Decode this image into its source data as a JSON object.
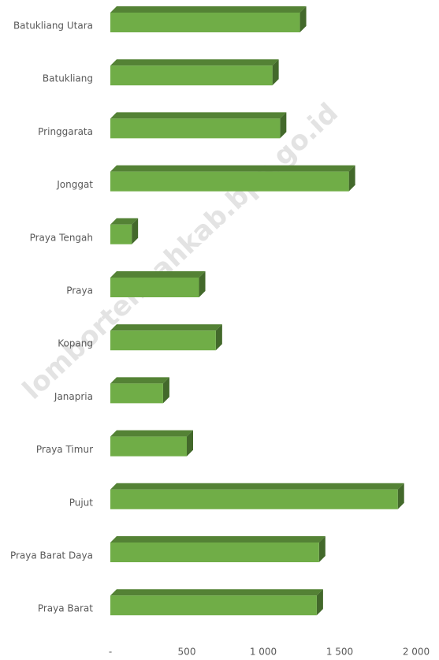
{
  "chart_data": {
    "type": "bar3d_horizontal",
    "categories": [
      "Batukliang Utara",
      "Batukliang",
      "Pringgarata",
      "Jonggat",
      "Praya Tengah",
      "Praya",
      "Kopang",
      "Janapria",
      "Praya Timur",
      "Pujut",
      "Praya Barat Daya",
      "Praya Barat"
    ],
    "values": [
      1240,
      1060,
      1110,
      1560,
      140,
      580,
      690,
      345,
      500,
      1880,
      1365,
      1350
    ],
    "color": "#70ad47",
    "xlim": [
      0,
      2000
    ],
    "xticks": [
      {
        "value": 0,
        "label": "-"
      },
      500,
      {
        "value": 1000,
        "label": "1 000"
      },
      {
        "value": 1500,
        "label": "1 500"
      },
      {
        "value": 2000,
        "label": "2 000"
      }
    ],
    "watermark": "lombortengahkab.bps.go.id"
  }
}
